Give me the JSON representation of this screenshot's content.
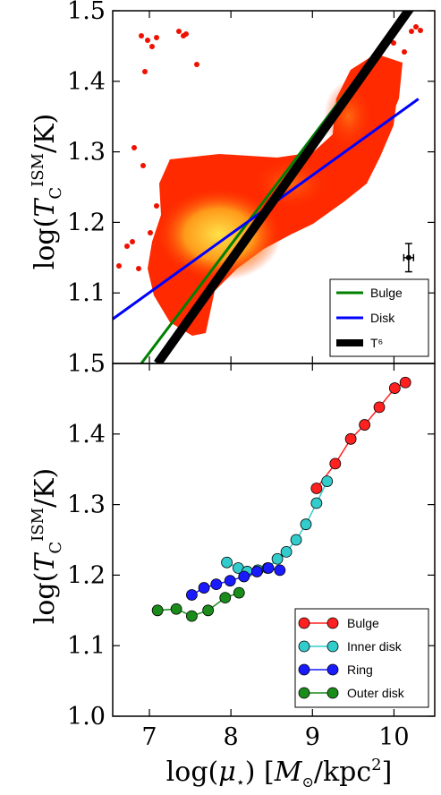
{
  "chart_data": [
    {
      "type": "scatter",
      "panel": "top",
      "xlim": [
        6.55,
        10.5
      ],
      "ylim": [
        1.0,
        1.5
      ],
      "ylabel": "log(T_C^ISM/K)",
      "xlabel": "",
      "y_ticks": [
        "1.1",
        "1.2",
        "1.3",
        "1.4",
        "1.5"
      ],
      "y_bottom_label": "1.5",
      "grid": false,
      "legend_position": "lower-right",
      "density_colormap": "hot (red to yellow)",
      "series": [
        {
          "name": "Bulge",
          "kind": "line",
          "color": "#008000",
          "x": [
            6.9,
            10.3
          ],
          "y": [
            1.0,
            1.52
          ]
        },
        {
          "name": "Disk",
          "kind": "line",
          "color": "#0000ff",
          "x": [
            6.55,
            10.3
          ],
          "y": [
            1.063,
            1.375
          ]
        },
        {
          "name": "T⁶",
          "kind": "line",
          "color": "#000000",
          "x": [
            7.1,
            10.3
          ],
          "y": [
            1.0,
            1.52
          ]
        }
      ],
      "error_bar": {
        "x": 10.18,
        "y": 1.15,
        "xerr": 0.06,
        "yerr": 0.02
      }
    },
    {
      "type": "line",
      "panel": "bottom",
      "xlim": [
        6.55,
        10.5
      ],
      "ylim": [
        1.0,
        1.5
      ],
      "ylabel": "log(T_C^ISM/K)",
      "xlabel": "log(μ★) [M⊙/kpc²]",
      "x_ticks": [
        "7",
        "8",
        "9",
        "10"
      ],
      "y_ticks": [
        "1.0",
        "1.1",
        "1.2",
        "1.3",
        "1.4",
        "1.5"
      ],
      "grid": false,
      "legend_position": "lower-right",
      "series": [
        {
          "name": "Bulge",
          "color": "#ff2020",
          "x": [
            9.05,
            9.28,
            9.47,
            9.64,
            9.82,
            10.01,
            10.14
          ],
          "y": [
            1.323,
            1.358,
            1.393,
            1.413,
            1.438,
            1.465,
            1.473
          ]
        },
        {
          "name": "Inner disk",
          "color": "#33cccc",
          "x": [
            7.95,
            8.09,
            8.2,
            8.33,
            8.45,
            8.57,
            8.68,
            8.8,
            8.92,
            9.05,
            9.18
          ],
          "y": [
            1.218,
            1.21,
            1.205,
            1.207,
            1.21,
            1.223,
            1.233,
            1.25,
            1.272,
            1.302,
            1.333
          ]
        },
        {
          "name": "Ring",
          "color": "#1a1aff",
          "x": [
            7.52,
            7.67,
            7.82,
            7.99,
            8.16,
            8.32,
            8.46,
            8.6
          ],
          "y": [
            1.172,
            1.182,
            1.187,
            1.192,
            1.198,
            1.205,
            1.21,
            1.207
          ]
        },
        {
          "name": "Outer disk",
          "color": "#1a8c1a",
          "x": [
            7.1,
            7.33,
            7.52,
            7.72,
            7.93,
            8.1
          ],
          "y": [
            1.15,
            1.152,
            1.142,
            1.15,
            1.168,
            1.175
          ]
        }
      ]
    }
  ]
}
